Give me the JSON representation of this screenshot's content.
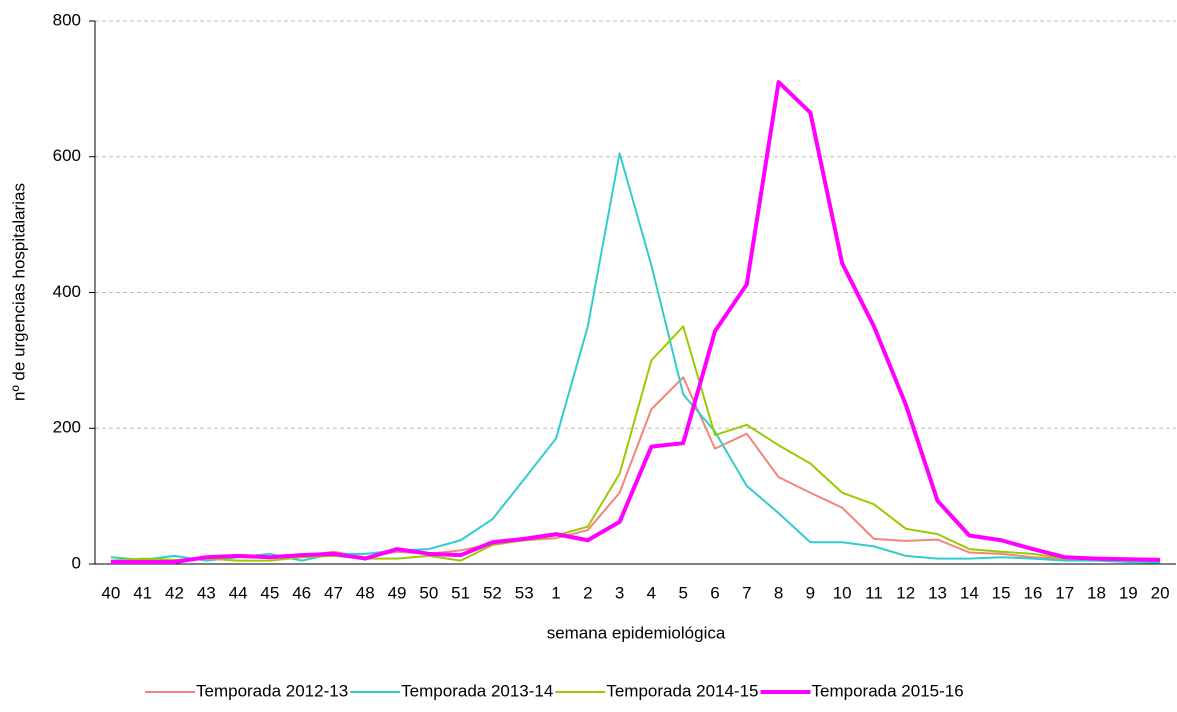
{
  "chart_data": {
    "type": "line",
    "y_label": "nº de urgencias hospitalarias",
    "x_label": "semana epidemiológica",
    "categories": [
      "40",
      "41",
      "42",
      "43",
      "44",
      "45",
      "46",
      "47",
      "48",
      "49",
      "50",
      "51",
      "52",
      "53",
      "1",
      "2",
      "3",
      "4",
      "5",
      "6",
      "7",
      "8",
      "9",
      "10",
      "11",
      "12",
      "13",
      "14",
      "15",
      "16",
      "17",
      "18",
      "19",
      "20"
    ],
    "series": [
      {
        "name": "Temporada 2012-13",
        "color": "#f4857a",
        "width": 2,
        "values": [
          5,
          5,
          5,
          8,
          10,
          10,
          12,
          18,
          10,
          18,
          15,
          20,
          30,
          35,
          38,
          50,
          105,
          228,
          275,
          170,
          192,
          128,
          105,
          83,
          37,
          34,
          36,
          17,
          15,
          10,
          8,
          7,
          7,
          5
        ]
      },
      {
        "name": "Temporada 2013-14",
        "color": "#33cccc",
        "width": 2,
        "values": [
          10,
          6,
          12,
          5,
          10,
          15,
          5,
          15,
          15,
          20,
          22,
          35,
          66,
          125,
          185,
          350,
          605,
          440,
          250,
          195,
          115,
          75,
          32,
          32,
          26,
          12,
          8,
          8,
          10,
          8,
          5,
          5,
          3,
          2
        ]
      },
      {
        "name": "Temporada 2014-15",
        "color": "#99cc00",
        "width": 2,
        "values": [
          5,
          8,
          6,
          8,
          5,
          5,
          10,
          12,
          8,
          8,
          12,
          5,
          28,
          35,
          42,
          55,
          133,
          300,
          350,
          190,
          205,
          175,
          148,
          105,
          88,
          52,
          44,
          22,
          18,
          15,
          8,
          8,
          7,
          5
        ]
      },
      {
        "name": "Temporada 2015-16",
        "color": "#ff00ff",
        "width": 4,
        "values": [
          3,
          3,
          3,
          10,
          12,
          10,
          13,
          15,
          8,
          22,
          15,
          13,
          32,
          37,
          44,
          35,
          62,
          173,
          178,
          343,
          412,
          710,
          665,
          443,
          350,
          235,
          93,
          42,
          35,
          22,
          10,
          8,
          7,
          6
        ]
      }
    ],
    "ylim": [
      0,
      800
    ],
    "yticks": [
      0,
      200,
      400,
      600,
      800
    ],
    "grid": true,
    "legend": "bottom"
  }
}
